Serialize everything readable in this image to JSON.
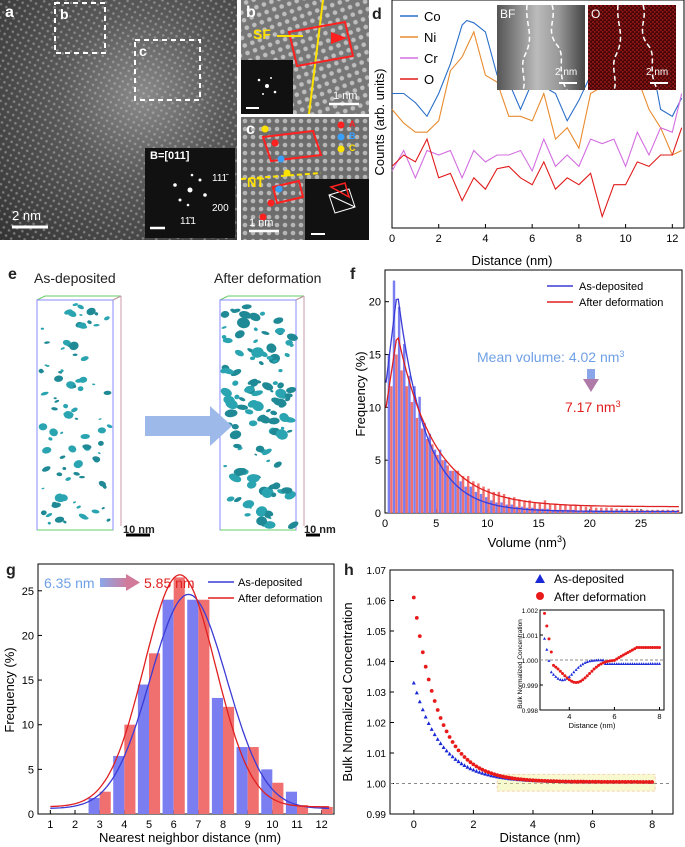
{
  "panels": {
    "a": {
      "label": "a",
      "box_b": "b",
      "box_c": "c",
      "beam": "B=[011]",
      "spots": [
        "111̄",
        "200",
        "11̄1"
      ],
      "scale": "2 nm"
    },
    "b": {
      "label": "b",
      "sf": "SF",
      "scale": "1 nm"
    },
    "c": {
      "label": "c",
      "stack": [
        "A",
        "B",
        "C"
      ],
      "nt": "NT",
      "scale": "1 nm"
    },
    "d": {
      "label": "d",
      "bf": "BF",
      "o": "O",
      "scale1": "2 nm",
      "scale2": "2 nm"
    },
    "e": {
      "label": "e",
      "left": "As-deposited",
      "right": "After deformation",
      "scale1": "10 nm",
      "scale2": "10 nm"
    },
    "f": {
      "label": "f",
      "mean": "Mean volume: 4.02 nm",
      "mean_sup": "3",
      "after": "7.17 nm",
      "after_sup": "3"
    },
    "g": {
      "label": "g",
      "from": "6.35 nm",
      "to": "5.85 nm"
    },
    "h": {
      "label": "h"
    }
  },
  "colors": {
    "blue": "#3b3bd6",
    "red": "#e02020",
    "barBlue": "#7a7ef0",
    "barRed": "#f07070",
    "co": "#2a6fc9",
    "ni": "#e88b2e",
    "cr": "#d36ee0",
    "o": "#e01b1b"
  },
  "chart_data": [
    {
      "id": "d",
      "type": "line",
      "xlabel": "Distance (nm)",
      "ylabel": "Counts (arb. units)",
      "xlim": [
        0,
        12.5
      ],
      "xticks": [
        0,
        2,
        4,
        6,
        8,
        10,
        12
      ],
      "series": [
        {
          "name": "Co",
          "x": [
            0,
            0.5,
            1,
            1.5,
            2,
            2.5,
            3,
            3.2,
            3.5,
            4,
            4.5,
            5,
            5.5,
            6,
            6.5,
            7,
            7.5,
            8,
            8.5,
            9,
            9.5,
            10,
            10.5,
            11,
            11.5,
            12,
            12.4
          ],
          "values": [
            0.62,
            0.55,
            0.58,
            0.45,
            0.62,
            0.68,
            0.92,
            0.87,
            0.93,
            0.82,
            0.7,
            0.6,
            0.55,
            0.6,
            0.65,
            0.55,
            0.5,
            0.52,
            0.7,
            0.85,
            0.92,
            0.88,
            0.82,
            0.75,
            0.55,
            0.45,
            0.6
          ]
        },
        {
          "name": "Ni",
          "x": [
            0,
            0.5,
            1,
            1.5,
            2,
            2.5,
            3,
            3.5,
            4,
            4.5,
            5,
            5.5,
            6,
            6.5,
            7,
            7.5,
            8,
            8.5,
            9,
            9.5,
            10,
            10.5,
            11,
            11.5,
            12,
            12.4
          ],
          "values": [
            0.55,
            0.42,
            0.45,
            0.38,
            0.5,
            0.65,
            0.78,
            0.82,
            0.7,
            0.6,
            0.52,
            0.45,
            0.5,
            0.55,
            0.42,
            0.4,
            0.38,
            0.55,
            0.65,
            0.75,
            0.78,
            0.62,
            0.55,
            0.4,
            0.35,
            0.3
          ]
        },
        {
          "name": "Cr",
          "x": [
            0,
            0.5,
            1,
            1.5,
            2,
            2.5,
            3,
            3.5,
            4,
            4.5,
            5,
            5.5,
            6,
            6.5,
            7,
            7.5,
            8,
            8.5,
            9,
            9.5,
            10,
            10.5,
            11,
            11.5,
            12,
            12.4
          ],
          "values": [
            0.28,
            0.3,
            0.25,
            0.3,
            0.35,
            0.3,
            0.25,
            0.3,
            0.32,
            0.28,
            0.35,
            0.3,
            0.28,
            0.35,
            0.3,
            0.28,
            0.3,
            0.35,
            0.4,
            0.35,
            0.3,
            0.38,
            0.35,
            0.4,
            0.45,
            0.55
          ]
        },
        {
          "name": "O",
          "x": [
            0,
            0.5,
            1,
            1.5,
            2,
            2.5,
            3,
            3.5,
            4,
            4.5,
            5,
            5.5,
            6,
            6.5,
            7,
            7.5,
            8,
            8.5,
            9,
            9.5,
            10,
            10.5,
            11,
            11.5,
            12,
            12.4
          ],
          "values": [
            0.3,
            0.28,
            0.32,
            0.35,
            0.25,
            0.2,
            0.15,
            0.18,
            0.2,
            0.22,
            0.3,
            0.18,
            0.22,
            0.25,
            0.2,
            0.18,
            0.22,
            0.2,
            0.08,
            0.15,
            0.22,
            0.25,
            0.3,
            0.28,
            0.35,
            0.4
          ]
        }
      ]
    },
    {
      "id": "f",
      "type": "bar",
      "xlabel": "Volume  (nm",
      "xlabel_sup": "3",
      "xlabel_end": ")",
      "ylabel": "Frequency (%)",
      "xlim": [
        0,
        29
      ],
      "ylim": [
        0,
        23
      ],
      "xticks": [
        0,
        5,
        10,
        15,
        20,
        25
      ],
      "yticks": [
        0,
        5,
        10,
        15,
        20
      ],
      "legend": [
        "As-deposited",
        "After deformation"
      ],
      "x": [
        0.5,
        1,
        1.5,
        2,
        2.5,
        3,
        3.5,
        4,
        4.5,
        5,
        5.5,
        6,
        6.5,
        7,
        7.5,
        8,
        8.5,
        9,
        9.5,
        10,
        10.5,
        11,
        11.5,
        12,
        12.5,
        13,
        13.5,
        14,
        14.5,
        15,
        15.5,
        16,
        16.5,
        17,
        17.5,
        18,
        18.5,
        19,
        19.5,
        20,
        20.5,
        21,
        21.5,
        22,
        22.5,
        23,
        23.5,
        24,
        24.5,
        25,
        25.5,
        26,
        26.5,
        27,
        27.5,
        28,
        28.5
      ],
      "series": [
        {
          "name": "As-deposited",
          "values": [
            15,
            22,
            19.5,
            16,
            13,
            12,
            11,
            8.5,
            7.5,
            6,
            6,
            5,
            4,
            4,
            3,
            2.5,
            2.5,
            2,
            1.8,
            1.5,
            1.2,
            1,
            1,
            0.8,
            0.8,
            0.6,
            0.6,
            0.5,
            0.5,
            0.4,
            0.4,
            0.4,
            0.3,
            0.3,
            0.3,
            0.3,
            0.3,
            0.2,
            0.2,
            0.2,
            0.2,
            0.2,
            0.1,
            0.1,
            0.1,
            0.1,
            0.1,
            0.1,
            0.1,
            0.1,
            0.1,
            0.1,
            0.1,
            0.1,
            0.1,
            0.1,
            0.1
          ]
        },
        {
          "name": "After deformation",
          "values": [
            12,
            15,
            13.5,
            12,
            10.5,
            9,
            8,
            7,
            6.5,
            5.5,
            5,
            4.5,
            4,
            4,
            3.5,
            3.5,
            3,
            2.8,
            2.5,
            2.3,
            2,
            2,
            1.8,
            1.5,
            1.5,
            1.3,
            1.2,
            1.2,
            1,
            1,
            1.2,
            0.9,
            0.9,
            0.8,
            0.8,
            0.8,
            0.7,
            0.7,
            0.6,
            0.6,
            0.5,
            0.5,
            0.5,
            0.5,
            0.4,
            0.4,
            0.4,
            0.4,
            0.4,
            0.3,
            0.3,
            0.3,
            0.3,
            0.3,
            0.3,
            0.3,
            0.3
          ]
        }
      ]
    },
    {
      "id": "g",
      "type": "bar",
      "xlabel": "Nearest neighbor distance (nm)",
      "ylabel": "Frequency (%)",
      "xlim": [
        0.5,
        12.5
      ],
      "ylim": [
        0,
        28
      ],
      "xticks": [
        1,
        2,
        3,
        4,
        5,
        6,
        7,
        8,
        9,
        10,
        11,
        12
      ],
      "yticks": [
        0,
        5,
        10,
        15,
        20,
        25
      ],
      "legend": [
        "As-deposited",
        "After deformation"
      ],
      "categories": [
        3,
        4,
        5,
        6,
        7,
        8,
        9,
        10,
        11,
        12
      ],
      "series": [
        {
          "name": "As-deposited",
          "values": [
            1.8,
            6.5,
            14.5,
            24,
            24,
            13,
            7.5,
            5,
            2.5,
            0
          ]
        },
        {
          "name": "After deformation",
          "values": [
            2.5,
            10,
            18,
            26.5,
            24,
            12,
            7.5,
            3.5,
            1,
            0.8
          ]
        }
      ]
    },
    {
      "id": "h",
      "type": "scatter",
      "xlabel": "Distance (nm)",
      "ylabel": "Bulk Normalized Concentration",
      "xlim": [
        -0.8,
        8.7
      ],
      "ylim": [
        0.99,
        1.07
      ],
      "xticks": [
        0,
        2,
        4,
        6,
        8
      ],
      "yticks": [
        0.99,
        1.0,
        1.01,
        1.02,
        1.03,
        1.04,
        1.05,
        1.06,
        1.07
      ],
      "legend": [
        "As-deposited",
        "After deformation"
      ],
      "series": [
        {
          "name": "As-deposited",
          "start": 1.033,
          "end": 1.0005,
          "decay": 0.95
        },
        {
          "name": "After deformation",
          "start": 1.061,
          "end": 1.0005,
          "decay": 0.85
        }
      ],
      "inset": {
        "xlabel": "Distance (nm)",
        "ylabel": "Bulk Normalized Concentration",
        "ylim": [
          0.998,
          1.002
        ],
        "xticks": [
          4,
          6,
          8
        ],
        "yticks": [
          0.998,
          0.999,
          1.0,
          1.001,
          1.002
        ]
      }
    }
  ]
}
